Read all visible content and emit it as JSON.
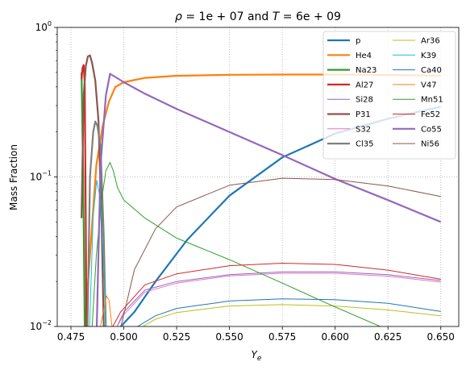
{
  "chart_data": {
    "type": "line",
    "title_parts": {
      "rho": "ρ",
      "eq1": " = 1e + 07",
      "mid": " and ",
      "T": "T",
      "eq2": " = 6e + 09"
    },
    "xlabel_main": "Y",
    "xlabel_sub": "e",
    "ylabel": "Mass Fraction",
    "x_scale": "linear",
    "y_scale": "log",
    "xlim": [
      0.4685,
      0.6585
    ],
    "ylim": [
      0.01,
      1.0
    ],
    "x_ticks": [
      0.475,
      0.5,
      0.525,
      0.55,
      0.575,
      0.6,
      0.625,
      0.65
    ],
    "x_tick_labels": [
      "0.475",
      "0.500",
      "0.525",
      "0.550",
      "0.575",
      "0.600",
      "0.625",
      "0.650"
    ],
    "y_ticks": [
      {
        "value": 0.01,
        "base": "10",
        "exp": "−2"
      },
      {
        "value": 0.1,
        "base": "10",
        "exp": "−1"
      },
      {
        "value": 1.0,
        "base": "10",
        "exp": "0"
      }
    ],
    "grid": true,
    "legend_placement": "upper-right",
    "legend_columns": 2,
    "series": [
      {
        "name": "p",
        "color": "#1f77b4",
        "width": 2.2,
        "x": [
          0.498,
          0.505,
          0.515,
          0.53,
          0.55,
          0.575,
          0.6,
          0.625,
          0.65
        ],
        "y": [
          0.0098,
          0.0125,
          0.02,
          0.038,
          0.075,
          0.135,
          0.195,
          0.245,
          0.295
        ]
      },
      {
        "name": "He4",
        "color": "#ff7f0e",
        "width": 2.2,
        "x": [
          0.4815,
          0.484,
          0.487,
          0.49,
          0.493,
          0.496,
          0.5,
          0.51,
          0.525,
          0.55,
          0.575,
          0.6,
          0.625,
          0.65
        ],
        "y": [
          0.0098,
          0.03,
          0.12,
          0.22,
          0.32,
          0.4,
          0.43,
          0.46,
          0.475,
          0.482,
          0.484,
          0.484,
          0.48,
          0.476
        ]
      },
      {
        "name": "Na23",
        "color": "#2ca02c",
        "width": 2.2,
        "x": [
          0.48,
          0.4808,
          0.4815
        ],
        "y": [
          0.5,
          0.1,
          0.0098
        ]
      },
      {
        "name": "Al27",
        "color": "#d62728",
        "width": 2.2,
        "x": [
          0.48,
          0.4805,
          0.481,
          0.4815,
          0.482,
          0.4823
        ],
        "y": [
          0.45,
          0.54,
          0.56,
          0.42,
          0.05,
          0.0098
        ]
      },
      {
        "name": "Si28",
        "color": "#9467bd",
        "width": 1.0,
        "x": [
          0.4965,
          0.5,
          0.51,
          0.525,
          0.55,
          0.575,
          0.6,
          0.625,
          0.65
        ],
        "y": [
          0.0098,
          0.0125,
          0.0175,
          0.02,
          0.0222,
          0.0232,
          0.0232,
          0.0222,
          0.0203
        ]
      },
      {
        "name": "P31",
        "color": "#8c564b",
        "width": 2.2,
        "x": [
          0.48,
          0.481,
          0.482,
          0.483,
          0.484,
          0.485,
          0.4865,
          0.488,
          0.4895,
          0.4905
        ],
        "y": [
          0.053,
          0.35,
          0.55,
          0.64,
          0.65,
          0.58,
          0.44,
          0.24,
          0.05,
          0.0098
        ]
      },
      {
        "name": "S32",
        "color": "#e377c2",
        "width": 1.0,
        "x": [
          0.4965,
          0.5,
          0.51,
          0.525,
          0.55,
          0.575,
          0.6,
          0.625,
          0.65
        ],
        "y": [
          0.0098,
          0.012,
          0.017,
          0.0195,
          0.0218,
          0.0227,
          0.0227,
          0.0217,
          0.0198
        ]
      },
      {
        "name": "Cl35",
        "color": "#7f7f7f",
        "width": 2.2,
        "x": [
          0.4828,
          0.484,
          0.4855,
          0.4865,
          0.4875,
          0.489,
          0.4905,
          0.4915
        ],
        "y": [
          0.0098,
          0.1,
          0.2,
          0.235,
          0.22,
          0.16,
          0.04,
          0.0098
        ]
      },
      {
        "name": "Ar36",
        "color": "#bcbd22",
        "width": 1.0,
        "x": [
          0.508,
          0.515,
          0.525,
          0.55,
          0.575,
          0.6,
          0.625,
          0.65
        ],
        "y": [
          0.0098,
          0.0112,
          0.0124,
          0.0137,
          0.014,
          0.0137,
          0.0129,
          0.0118
        ]
      },
      {
        "name": "K39",
        "color": "#17becf",
        "width": 1.0,
        "x": [
          0.4838,
          0.4855,
          0.4872,
          0.489,
          0.4905,
          0.4915
        ],
        "y": [
          0.0098,
          0.055,
          0.095,
          0.07,
          0.025,
          0.0098
        ]
      },
      {
        "name": "Ca40",
        "color": "#1f77b4",
        "width": 1.0,
        "x": [
          0.5055,
          0.515,
          0.525,
          0.55,
          0.575,
          0.6,
          0.625,
          0.65
        ],
        "y": [
          0.0098,
          0.0118,
          0.0132,
          0.0148,
          0.0153,
          0.0151,
          0.0143,
          0.0126
        ]
      },
      {
        "name": "V47",
        "color": "#ff7f0e",
        "width": 1.0,
        "x": [
          0.4888,
          0.4905,
          0.4918,
          0.493,
          0.4945
        ],
        "y": [
          0.0098,
          0.013,
          0.016,
          0.015,
          0.0098
        ]
      },
      {
        "name": "Mn51",
        "color": "#2ca02c",
        "width": 1.0,
        "x": [
          0.485,
          0.487,
          0.4895,
          0.4915,
          0.4935,
          0.495,
          0.497,
          0.5,
          0.51,
          0.525,
          0.55,
          0.575,
          0.6,
          0.625,
          0.65
        ],
        "y": [
          0.0098,
          0.03,
          0.07,
          0.11,
          0.125,
          0.11,
          0.085,
          0.07,
          0.053,
          0.039,
          0.028,
          0.0195,
          0.0135,
          0.0095,
          0.007
        ]
      },
      {
        "name": "Fe52",
        "color": "#d62728",
        "width": 1.0,
        "x": [
          0.4945,
          0.4985,
          0.51,
          0.525,
          0.55,
          0.575,
          0.6,
          0.625,
          0.65
        ],
        "y": [
          0.0098,
          0.0125,
          0.019,
          0.0225,
          0.0255,
          0.0265,
          0.026,
          0.0238,
          0.0207
        ]
      },
      {
        "name": "Co55",
        "color": "#9467bd",
        "width": 2.2,
        "x": [
          0.4872,
          0.489,
          0.4915,
          0.4935,
          0.5,
          0.51,
          0.525,
          0.55,
          0.575,
          0.6,
          0.625,
          0.65
        ],
        "y": [
          0.0098,
          0.12,
          0.35,
          0.49,
          0.43,
          0.36,
          0.285,
          0.2,
          0.14,
          0.097,
          0.07,
          0.05
        ]
      },
      {
        "name": "Ni56",
        "color": "#8c564b",
        "width": 1.0,
        "x": [
          0.4985,
          0.5,
          0.505,
          0.515,
          0.525,
          0.55,
          0.575,
          0.6,
          0.625,
          0.65
        ],
        "y": [
          0.0098,
          0.012,
          0.024,
          0.045,
          0.063,
          0.088,
          0.098,
          0.096,
          0.087,
          0.074
        ]
      }
    ]
  }
}
